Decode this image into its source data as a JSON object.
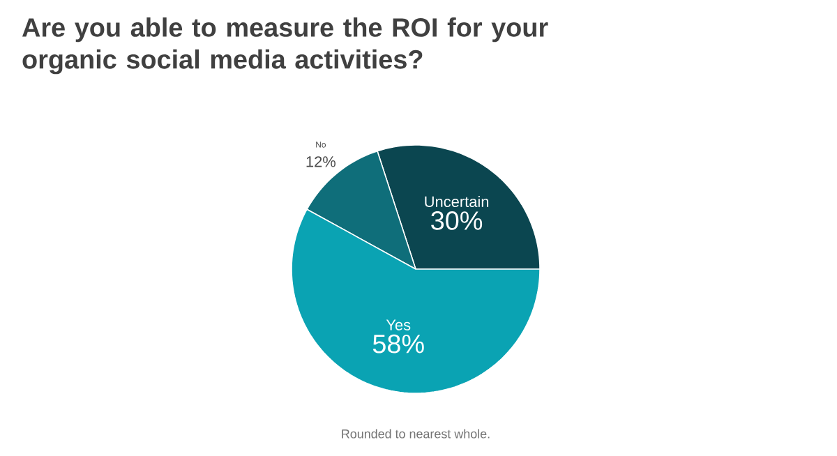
{
  "chart_data": {
    "type": "pie",
    "title": "Are you able to measure the ROI for your organic social media activities?",
    "categories": [
      "Uncertain",
      "No",
      "Yes"
    ],
    "values": [
      30,
      12,
      58
    ],
    "value_labels": [
      "30%",
      "12%",
      "58%"
    ],
    "colors": [
      "#0b4650",
      "#0f6e7a",
      "#0aa3b3"
    ],
    "annotations": [
      "Rounded to nearest whole."
    ]
  }
}
